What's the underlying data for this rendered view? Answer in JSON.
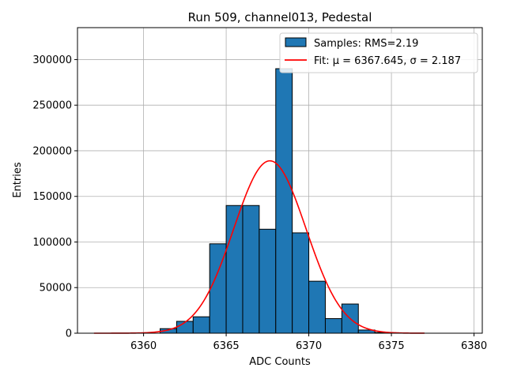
{
  "chart_data": {
    "type": "bar",
    "title": "Run 509, channel013, Pedestal",
    "xlabel": "ADC Counts",
    "ylabel": "Entries",
    "xlim": [
      6356,
      6380.5
    ],
    "ylim": [
      0,
      335000
    ],
    "xticks": [
      6360,
      6365,
      6370,
      6375,
      6380
    ],
    "yticks": [
      0,
      50000,
      100000,
      150000,
      200000,
      250000,
      300000
    ],
    "grid": true,
    "legend_position": "top-right",
    "bin_width": 1,
    "bins": [
      {
        "left": 6361,
        "value": 5000
      },
      {
        "left": 6362,
        "value": 13000
      },
      {
        "left": 6363,
        "value": 18000
      },
      {
        "left": 6364,
        "value": 98000
      },
      {
        "left": 6365,
        "value": 140000
      },
      {
        "left": 6366,
        "value": 140000
      },
      {
        "left": 6367,
        "value": 114000
      },
      {
        "left": 6368,
        "value": 290000
      },
      {
        "left": 6369,
        "value": 110000
      },
      {
        "left": 6370,
        "value": 57000
      },
      {
        "left": 6371,
        "value": 16000
      },
      {
        "left": 6372,
        "value": 32000
      },
      {
        "left": 6373,
        "value": 3500
      },
      {
        "left": 6374,
        "value": 800
      }
    ],
    "fit": {
      "mu": 6367.645,
      "sigma": 2.187,
      "amplitude": 189000,
      "x_range": [
        6357,
        6377
      ]
    },
    "series": [
      {
        "name": "Samples: RMS=2.19",
        "color": "#1f77b4"
      },
      {
        "name": "Fit: μ = 6367.645, σ = 2.187",
        "color": "#ff0000"
      }
    ]
  }
}
